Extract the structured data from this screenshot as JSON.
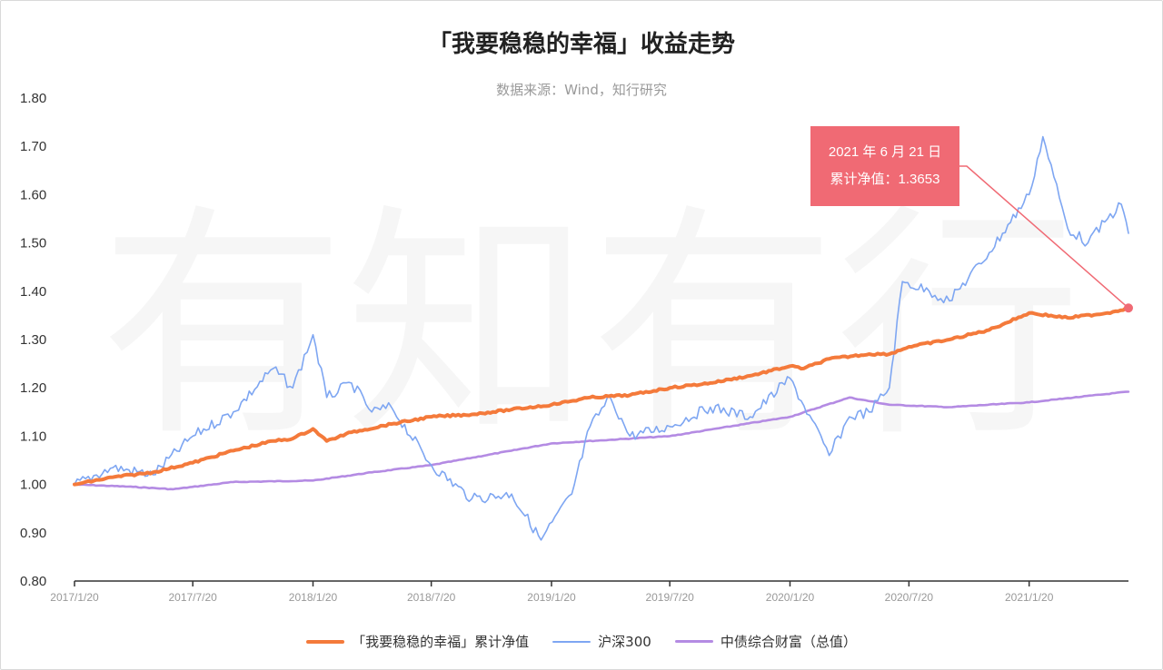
{
  "title": "「我要稳稳的幸福」收益走势",
  "subtitle": "数据来源：Wind，知行研究",
  "watermark": "有知有行",
  "tooltip": {
    "date": "2021 年 6 月 21  日",
    "value": "累计净值：1.3653"
  },
  "legend": [
    {
      "label": "「我要稳稳的幸福」累计净值",
      "color": "#f47a3b"
    },
    {
      "label": "沪深300",
      "color": "#7ea6f2"
    },
    {
      "label": "中债综合财富（总值）",
      "color": "#b48be3"
    }
  ],
  "colors": {
    "marker": "#f06a74",
    "axis": "#333333"
  },
  "chart_data": {
    "type": "line",
    "title": "「我要稳稳的幸福」收益走势",
    "xlabel": "",
    "ylabel": "",
    "ylim": [
      0.8,
      1.8
    ],
    "yticks": [
      "0.80",
      "0.90",
      "1.00",
      "1.10",
      "1.20",
      "1.30",
      "1.40",
      "1.50",
      "1.60",
      "1.70",
      "1.80"
    ],
    "xticks": [
      "2017/1/20",
      "2017/7/20",
      "2018/1/20",
      "2018/7/20",
      "2019/1/20",
      "2019/7/20",
      "2020/1/20",
      "2020/7/20",
      "2021/1/20"
    ],
    "x_range": [
      "2017/1/20",
      "2021/6/21"
    ],
    "grid": false,
    "legend_position": "bottom",
    "series": [
      {
        "name": "「我要稳稳的幸福」累计净值",
        "color": "#f47a3b",
        "points": [
          [
            "2017/1/20",
            1.0
          ],
          [
            "2017/3/20",
            1.015
          ],
          [
            "2017/5/20",
            1.025
          ],
          [
            "2017/7/20",
            1.045
          ],
          [
            "2017/9/20",
            1.07
          ],
          [
            "2017/11/20",
            1.09
          ],
          [
            "2017/12/20",
            1.095
          ],
          [
            "2018/1/20",
            1.115
          ],
          [
            "2018/2/10",
            1.09
          ],
          [
            "2018/3/20",
            1.108
          ],
          [
            "2018/5/20",
            1.125
          ],
          [
            "2018/7/20",
            1.14
          ],
          [
            "2018/9/20",
            1.145
          ],
          [
            "2018/11/20",
            1.155
          ],
          [
            "2019/1/20",
            1.165
          ],
          [
            "2019/3/20",
            1.18
          ],
          [
            "2019/5/20",
            1.185
          ],
          [
            "2019/7/20",
            1.2
          ],
          [
            "2019/9/20",
            1.21
          ],
          [
            "2019/11/20",
            1.225
          ],
          [
            "2020/1/20",
            1.245
          ],
          [
            "2020/2/10",
            1.24
          ],
          [
            "2020/3/20",
            1.26
          ],
          [
            "2020/5/20",
            1.27
          ],
          [
            "2020/6/20",
            1.27
          ],
          [
            "2020/7/20",
            1.285
          ],
          [
            "2020/9/20",
            1.3
          ],
          [
            "2020/11/20",
            1.32
          ],
          [
            "2021/1/20",
            1.355
          ],
          [
            "2021/3/20",
            1.345
          ],
          [
            "2021/5/20",
            1.355
          ],
          [
            "2021/6/21",
            1.3653
          ]
        ]
      },
      {
        "name": "沪深300",
        "color": "#7ea6f2",
        "points": [
          [
            "2017/1/20",
            1.0
          ],
          [
            "2017/3/20",
            1.035
          ],
          [
            "2017/5/20",
            1.02
          ],
          [
            "2017/7/20",
            1.1
          ],
          [
            "2017/9/20",
            1.15
          ],
          [
            "2017/11/20",
            1.24
          ],
          [
            "2017/12/20",
            1.2
          ],
          [
            "2018/1/20",
            1.31
          ],
          [
            "2018/2/10",
            1.18
          ],
          [
            "2018/3/20",
            1.21
          ],
          [
            "2018/4/20",
            1.15
          ],
          [
            "2018/5/20",
            1.16
          ],
          [
            "2018/7/20",
            1.04
          ],
          [
            "2018/9/20",
            0.97
          ],
          [
            "2018/11/20",
            0.98
          ],
          [
            "2019/1/4",
            0.885
          ],
          [
            "2019/2/20",
            0.98
          ],
          [
            "2019/3/20",
            1.12
          ],
          [
            "2019/4/20",
            1.18
          ],
          [
            "2019/5/20",
            1.1
          ],
          [
            "2019/7/20",
            1.12
          ],
          [
            "2019/9/20",
            1.16
          ],
          [
            "2019/11/20",
            1.14
          ],
          [
            "2020/1/20",
            1.22
          ],
          [
            "2020/3/20",
            1.06
          ],
          [
            "2020/4/20",
            1.14
          ],
          [
            "2020/5/20",
            1.15
          ],
          [
            "2020/6/20",
            1.2
          ],
          [
            "2020/7/10",
            1.42
          ],
          [
            "2020/8/20",
            1.4
          ],
          [
            "2020/9/20",
            1.38
          ],
          [
            "2020/11/20",
            1.48
          ],
          [
            "2021/1/20",
            1.6
          ],
          [
            "2021/2/10",
            1.72
          ],
          [
            "2021/3/20",
            1.53
          ],
          [
            "2021/4/20",
            1.5
          ],
          [
            "2021/5/20",
            1.55
          ],
          [
            "2021/6/10",
            1.58
          ],
          [
            "2021/6/21",
            1.52
          ]
        ]
      },
      {
        "name": "中债综合财富（总值）",
        "color": "#b48be3",
        "points": [
          [
            "2017/1/20",
            1.0
          ],
          [
            "2017/4/20",
            0.995
          ],
          [
            "2017/6/20",
            0.99
          ],
          [
            "2017/9/20",
            1.005
          ],
          [
            "2018/1/20",
            1.008
          ],
          [
            "2018/4/20",
            1.025
          ],
          [
            "2018/7/20",
            1.04
          ],
          [
            "2018/11/20",
            1.07
          ],
          [
            "2019/1/20",
            1.085
          ],
          [
            "2019/7/20",
            1.1
          ],
          [
            "2020/1/20",
            1.14
          ],
          [
            "2020/4/20",
            1.18
          ],
          [
            "2020/6/20",
            1.165
          ],
          [
            "2020/9/20",
            1.16
          ],
          [
            "2021/1/20",
            1.17
          ],
          [
            "2021/6/21",
            1.192
          ]
        ]
      }
    ]
  }
}
